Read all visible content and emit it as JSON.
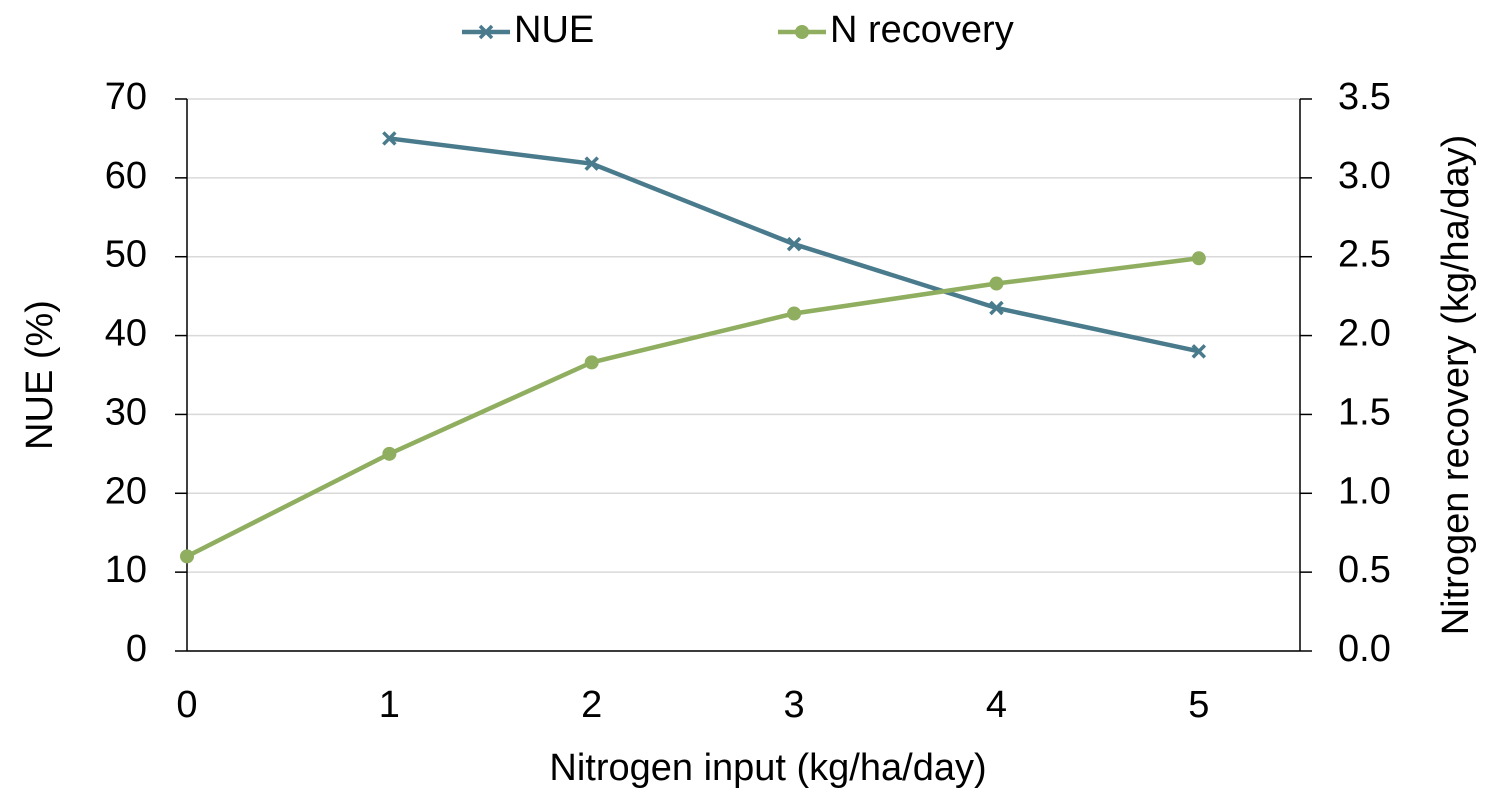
{
  "chart_data": {
    "type": "line",
    "xlabel": "Nitrogen input (kg/ha/day)",
    "ylabel": "NUE (%)",
    "y2label": "Nitrogen recovery (kg/ha/day)",
    "x": [
      0,
      1,
      2,
      3,
      4,
      5
    ],
    "xlim": [
      0,
      5.5
    ],
    "xticks": [
      0,
      1,
      2,
      3,
      4,
      5
    ],
    "ylim": [
      0,
      70
    ],
    "yticks": [
      0,
      10,
      20,
      30,
      40,
      50,
      60,
      70
    ],
    "y2lim": [
      0,
      3.5
    ],
    "y2ticks": [
      {
        "value": 0,
        "label": "0.0"
      },
      0.5,
      {
        "value": 1,
        "label": "1.0"
      },
      1.5,
      {
        "value": 2,
        "label": "2.0"
      },
      2.5,
      {
        "value": 3,
        "label": "3.0"
      },
      3.5
    ],
    "grid": true,
    "legend": "top",
    "series": [
      {
        "name": "NUE",
        "color": "#497b8d",
        "marker": "x",
        "values": [
          null,
          65.0,
          61.8,
          51.6,
          43.5,
          38.0
        ]
      },
      {
        "name": "N recovery",
        "color": "#8fae5f",
        "marker": "circle",
        "axis": "y2",
        "values": [
          0.6,
          1.25,
          1.83,
          2.14,
          2.33,
          2.49
        ]
      }
    ]
  }
}
